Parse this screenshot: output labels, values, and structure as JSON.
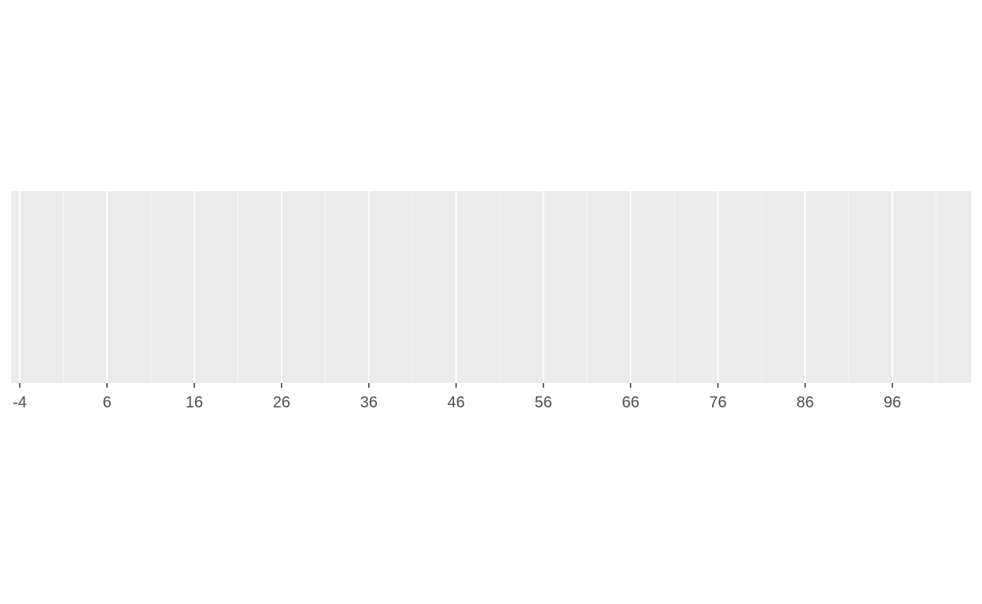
{
  "chart_data": {
    "type": "scatter",
    "title": "",
    "xlabel": "",
    "ylabel": "",
    "x": [],
    "y": [],
    "xlim": [
      -5,
      105
    ],
    "x_ticks": [
      -4,
      6,
      16,
      26,
      36,
      46,
      56,
      66,
      76,
      86,
      96
    ],
    "x_tick_labels": [
      "-4",
      "6",
      "16",
      "26",
      "36",
      "46",
      "56",
      "66",
      "76",
      "86",
      "96"
    ],
    "grid": true,
    "y_axis_visible": false,
    "legend": "none"
  },
  "colors": {
    "page_background": "#ffffff",
    "panel_background": "#ebebeb",
    "grid_major": "#ffffff",
    "grid_minor": "#f7f7f7",
    "tick": "#333333",
    "tick_label": "#4d4d4d"
  }
}
